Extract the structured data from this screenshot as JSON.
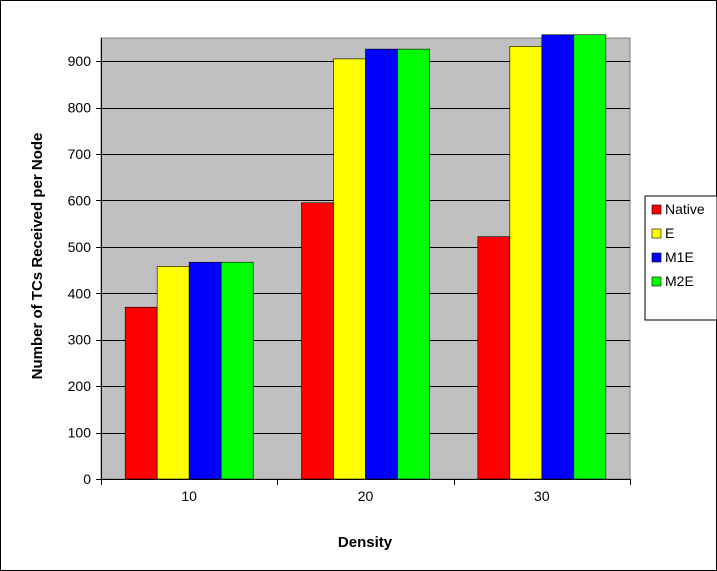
{
  "chart_data": {
    "type": "bar",
    "title": "",
    "xlabel": "Density",
    "ylabel": "Number of TCs Received per Node",
    "categories": [
      "10",
      "20",
      "30"
    ],
    "ylim": [
      0,
      950
    ],
    "yticks": [
      0,
      100,
      200,
      300,
      400,
      500,
      600,
      700,
      800,
      900
    ],
    "grid": true,
    "legend_position": "right",
    "plot_background": "#c0c0c0",
    "series": [
      {
        "name": "Native",
        "color": "#ff0000",
        "values": [
          370,
          595,
          522
        ]
      },
      {
        "name": "E",
        "color": "#ffff00",
        "values": [
          458,
          905,
          932
        ]
      },
      {
        "name": "M1E",
        "color": "#0000ff",
        "values": [
          467,
          926,
          957
        ]
      },
      {
        "name": "M2E",
        "color": "#00ff00",
        "values": [
          467,
          926,
          957
        ]
      }
    ]
  }
}
